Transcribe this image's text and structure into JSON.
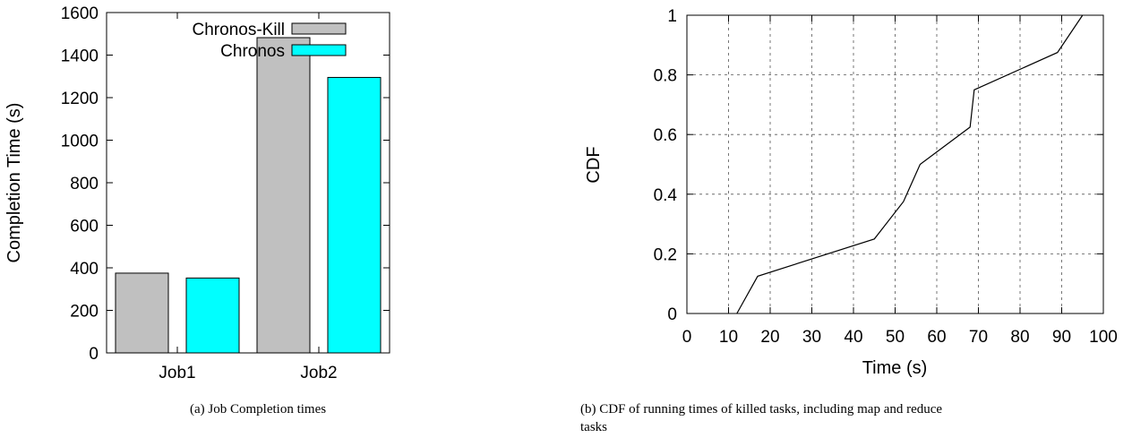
{
  "chart_data": [
    {
      "type": "bar",
      "caption": "(a)  Job Completion times",
      "ylabel": "Completion Time (s)",
      "xlabel": "",
      "ylim": [
        0,
        1600
      ],
      "yticks": [
        0,
        200,
        400,
        600,
        800,
        1000,
        1200,
        1400,
        1600
      ],
      "categories": [
        "Job1",
        "Job2"
      ],
      "series": [
        {
          "name": "Chronos-Kill",
          "color": "#c0c0c0",
          "values": [
            375,
            1482
          ]
        },
        {
          "name": "Chronos",
          "color": "#00ffff",
          "values": [
            352,
            1295
          ]
        }
      ],
      "legend_position": "top-left",
      "grid": false
    },
    {
      "type": "line",
      "caption": "(b)  CDF of running times of killed tasks, including map and reduce tasks",
      "xlabel": "Time (s)",
      "ylabel": "CDF",
      "xlim": [
        0,
        100
      ],
      "ylim": [
        0,
        1
      ],
      "xticks": [
        0,
        10,
        20,
        30,
        40,
        50,
        60,
        70,
        80,
        90,
        100
      ],
      "yticks": [
        0,
        0.2,
        0.4,
        0.6,
        0.8,
        1
      ],
      "series": [
        {
          "x": [
            12,
            17,
            45,
            52,
            56,
            68,
            69,
            89,
            95
          ],
          "y": [
            0,
            0.125,
            0.25,
            0.375,
            0.5,
            0.625,
            0.75,
            0.875,
            1.0
          ],
          "color": "#000000"
        }
      ],
      "grid": true
    }
  ]
}
